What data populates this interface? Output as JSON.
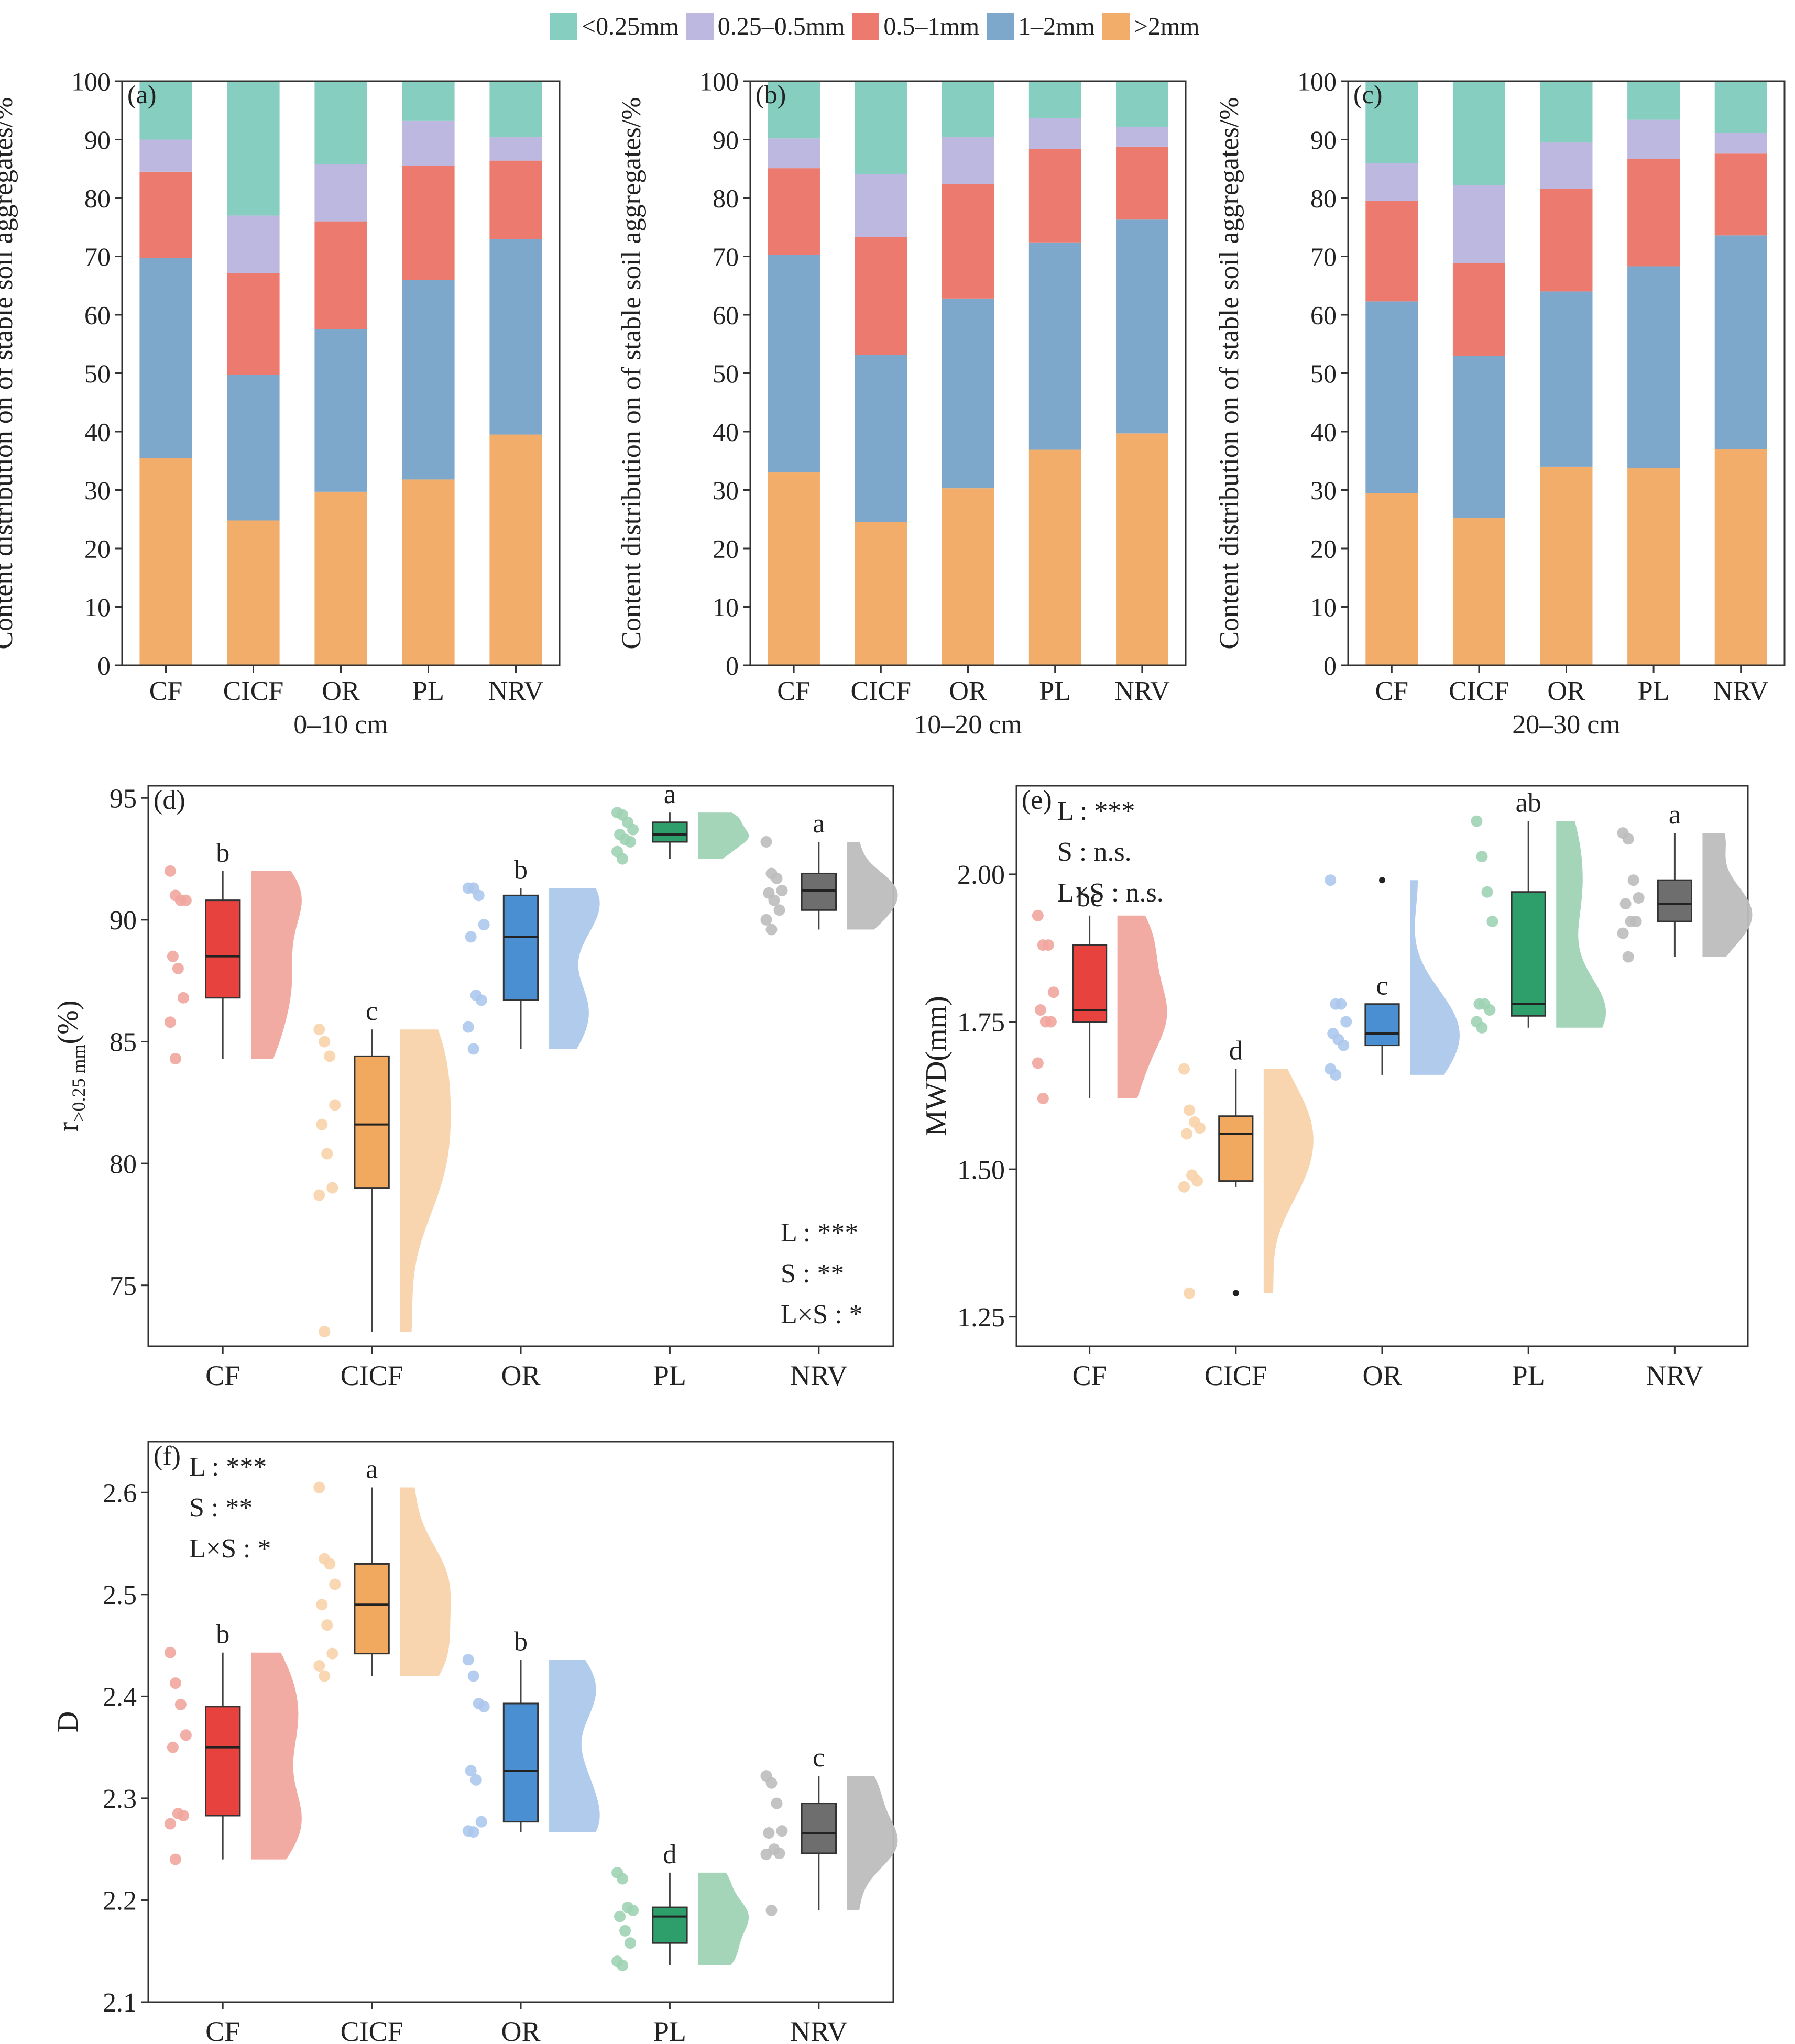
{
  "colors": {
    "lt025": "#86cfc0",
    "p025_05": "#bcb8df",
    "p05_1": "#ec7a6f",
    "p1_2": "#7ea8cb",
    "gt2": "#f3ad6a",
    "CF": "#e8423f",
    "CICF": "#f1a85f",
    "OR": "#4b8fd3",
    "PL": "#2e9e6b",
    "NRV": "#6e6e6e",
    "CF_light": "#f1a69e",
    "CICF_light": "#f8d3ab",
    "OR_light": "#adc8ec",
    "PL_light": "#9fd3b4",
    "NRV_light": "#bdbdbd"
  },
  "legend": [
    {
      "key": "lt025",
      "label": "<0.25mm",
      "icon": "legend-swatch"
    },
    {
      "key": "p025_05",
      "label": "0.25–0.5mm",
      "icon": "legend-swatch"
    },
    {
      "key": "p05_1",
      "label": "0.5–1mm",
      "icon": "legend-swatch"
    },
    {
      "key": "p1_2",
      "label": "1–2mm",
      "icon": "legend-swatch"
    },
    {
      "key": "gt2",
      "label": ">2mm",
      "icon": "legend-swatch"
    }
  ],
  "chart_data": [
    {
      "type": "bar",
      "stacked": true,
      "panel_label": "(a)",
      "xlabel": "0–10 cm",
      "ylabel": "Content distribution on of stable soil aggregates/%",
      "ylim": [
        0,
        100
      ],
      "yticks": [
        0,
        10,
        20,
        30,
        40,
        50,
        60,
        70,
        80,
        90,
        100
      ],
      "categories": [
        "CF",
        "CICF",
        "OR",
        "PL",
        "NRV"
      ],
      "series": [
        {
          "key": "gt2",
          "name": ">2mm",
          "values": [
            35.5,
            24.8,
            29.7,
            31.8,
            39.5
          ]
        },
        {
          "key": "p1_2",
          "name": "1–2mm",
          "values": [
            34.2,
            24.9,
            27.8,
            34.2,
            33.5
          ]
        },
        {
          "key": "p05_1",
          "name": "0.5–1mm",
          "values": [
            14.8,
            17.4,
            18.5,
            19.5,
            13.4
          ]
        },
        {
          "key": "p025_05",
          "name": "0.25–0.5mm",
          "values": [
            5.5,
            9.9,
            9.8,
            7.7,
            4.0
          ]
        },
        {
          "key": "lt025",
          "name": "<0.25mm",
          "values": [
            10.0,
            23.0,
            14.2,
            6.8,
            9.6
          ]
        }
      ]
    },
    {
      "type": "bar",
      "stacked": true,
      "panel_label": "(b)",
      "xlabel": "10–20 cm",
      "ylabel": "Content distribution on of stable soil aggregates/%",
      "ylim": [
        0,
        100
      ],
      "yticks": [
        0,
        10,
        20,
        30,
        40,
        50,
        60,
        70,
        80,
        90,
        100
      ],
      "categories": [
        "CF",
        "CICF",
        "OR",
        "PL",
        "NRV"
      ],
      "series": [
        {
          "key": "gt2",
          "name": ">2mm",
          "values": [
            33.0,
            24.5,
            30.3,
            36.9,
            39.7
          ]
        },
        {
          "key": "p1_2",
          "name": "1–2mm",
          "values": [
            37.3,
            28.6,
            32.5,
            35.5,
            36.6
          ]
        },
        {
          "key": "p05_1",
          "name": "0.5–1mm",
          "values": [
            14.8,
            20.2,
            19.6,
            16.0,
            12.5
          ]
        },
        {
          "key": "p025_05",
          "name": "0.25–0.5mm",
          "values": [
            5.1,
            10.8,
            8.0,
            5.3,
            3.4
          ]
        },
        {
          "key": "lt025",
          "name": "<0.25mm",
          "values": [
            9.8,
            15.9,
            9.6,
            6.3,
            7.8
          ]
        }
      ]
    },
    {
      "type": "bar",
      "stacked": true,
      "panel_label": "(c)",
      "xlabel": "20–30 cm",
      "ylabel": "Content distribution on of stable soil aggregates/%",
      "ylim": [
        0,
        100
      ],
      "yticks": [
        0,
        10,
        20,
        30,
        40,
        50,
        60,
        70,
        80,
        90,
        100
      ],
      "categories": [
        "CF",
        "CICF",
        "OR",
        "PL",
        "NRV"
      ],
      "series": [
        {
          "key": "gt2",
          "name": ">2mm",
          "values": [
            29.5,
            25.2,
            34.0,
            33.8,
            37.0
          ]
        },
        {
          "key": "p1_2",
          "name": "1–2mm",
          "values": [
            32.8,
            27.8,
            30.0,
            34.5,
            36.6
          ]
        },
        {
          "key": "p05_1",
          "name": "0.5–1mm",
          "values": [
            17.2,
            15.8,
            17.6,
            18.4,
            14.0
          ]
        },
        {
          "key": "p025_05",
          "name": "0.25–0.5mm",
          "values": [
            6.5,
            13.4,
            7.9,
            6.7,
            3.6
          ]
        },
        {
          "key": "lt025",
          "name": "<0.25mm",
          "values": [
            14.0,
            17.8,
            10.5,
            6.6,
            8.8
          ]
        }
      ]
    },
    {
      "type": "box",
      "panel_label": "(d)",
      "ylabel_main": "r",
      "ylabel_sub": ">0.25 mm",
      "ylabel_unit": "(%)",
      "ylim": [
        72.5,
        95.5
      ],
      "yticks": [
        75,
        80,
        85,
        90,
        95
      ],
      "categories": [
        "CF",
        "CICF",
        "OR",
        "PL",
        "NRV"
      ],
      "stats_position": "bottom-right",
      "stats": [
        "L : ***",
        "S : **",
        "L×S : *"
      ],
      "groups": [
        {
          "name": "CF",
          "q1": 86.8,
          "median": 88.5,
          "q3": 90.8,
          "whisker_low": 84.3,
          "whisker_high": 92.0,
          "letter": "b",
          "points": [
            92.0,
            91.0,
            90.8,
            90.8,
            88.5,
            88.0,
            86.8,
            85.8,
            84.3
          ],
          "outliers": []
        },
        {
          "name": "CICF",
          "q1": 79.0,
          "median": 81.6,
          "q3": 84.4,
          "whisker_low": 73.1,
          "whisker_high": 85.5,
          "letter": "c",
          "points": [
            85.5,
            85.0,
            84.4,
            82.4,
            81.6,
            80.4,
            79.0,
            78.7,
            73.1
          ],
          "outliers": []
        },
        {
          "name": "OR",
          "q1": 86.7,
          "median": 89.3,
          "q3": 91.0,
          "whisker_low": 84.7,
          "whisker_high": 91.3,
          "letter": "b",
          "points": [
            91.3,
            91.3,
            91.0,
            89.8,
            89.3,
            86.9,
            86.7,
            85.6,
            84.7
          ],
          "outliers": []
        },
        {
          "name": "PL",
          "q1": 93.2,
          "median": 93.5,
          "q3": 94.0,
          "whisker_low": 92.5,
          "whisker_high": 94.4,
          "letter": "a",
          "points": [
            94.4,
            94.3,
            94.0,
            93.7,
            93.5,
            93.3,
            93.2,
            92.8,
            92.5
          ],
          "outliers": []
        },
        {
          "name": "NRV",
          "q1": 90.4,
          "median": 91.2,
          "q3": 91.9,
          "whisker_low": 89.6,
          "whisker_high": 93.2,
          "letter": "a",
          "points": [
            93.2,
            91.9,
            91.7,
            91.2,
            91.1,
            90.8,
            90.4,
            90.0,
            89.6
          ],
          "outliers": []
        }
      ]
    },
    {
      "type": "box",
      "panel_label": "(e)",
      "ylabel": "MWD(mm)",
      "ylim": [
        1.2,
        2.15
      ],
      "yticks": [
        1.25,
        1.5,
        1.75,
        2.0
      ],
      "categories": [
        "CF",
        "CICF",
        "OR",
        "PL",
        "NRV"
      ],
      "stats_position": "top-left",
      "stats": [
        "L : ***",
        "S : n.s.",
        "L×S : n.s."
      ],
      "groups": [
        {
          "name": "CF",
          "q1": 1.75,
          "median": 1.77,
          "q3": 1.88,
          "whisker_low": 1.62,
          "whisker_high": 1.93,
          "letter": "bc",
          "points": [
            1.93,
            1.88,
            1.88,
            1.8,
            1.77,
            1.75,
            1.75,
            1.68,
            1.62
          ],
          "outliers": []
        },
        {
          "name": "CICF",
          "q1": 1.48,
          "median": 1.56,
          "q3": 1.59,
          "whisker_low": 1.47,
          "whisker_high": 1.67,
          "letter": "d",
          "points": [
            1.67,
            1.6,
            1.58,
            1.57,
            1.56,
            1.49,
            1.48,
            1.47,
            1.29
          ],
          "outliers": [
            1.29
          ]
        },
        {
          "name": "OR",
          "q1": 1.71,
          "median": 1.73,
          "q3": 1.78,
          "whisker_low": 1.66,
          "whisker_high": 1.78,
          "letter": "c",
          "points": [
            1.99,
            1.78,
            1.78,
            1.75,
            1.73,
            1.72,
            1.71,
            1.67,
            1.66
          ],
          "outliers": [
            1.99
          ]
        },
        {
          "name": "PL",
          "q1": 1.76,
          "median": 1.78,
          "q3": 1.97,
          "whisker_low": 1.74,
          "whisker_high": 2.09,
          "letter": "ab",
          "points": [
            2.09,
            2.03,
            1.97,
            1.92,
            1.78,
            1.78,
            1.77,
            1.75,
            1.74
          ],
          "outliers": []
        },
        {
          "name": "NRV",
          "q1": 1.92,
          "median": 1.95,
          "q3": 1.99,
          "whisker_low": 1.86,
          "whisker_high": 2.07,
          "letter": "a",
          "points": [
            2.07,
            2.06,
            1.99,
            1.96,
            1.95,
            1.92,
            1.92,
            1.9,
            1.86
          ],
          "outliers": []
        }
      ]
    },
    {
      "type": "box",
      "panel_label": "(f)",
      "ylabel": "D",
      "ylim": [
        2.1,
        2.65
      ],
      "yticks": [
        2.1,
        2.2,
        2.3,
        2.4,
        2.5,
        2.6
      ],
      "categories": [
        "CF",
        "CICF",
        "OR",
        "PL",
        "NRV"
      ],
      "stats_position": "top-left",
      "stats": [
        "L : ***",
        "S : **",
        "L×S : *"
      ],
      "groups": [
        {
          "name": "CF",
          "q1": 2.283,
          "median": 2.35,
          "q3": 2.39,
          "whisker_low": 2.24,
          "whisker_high": 2.443,
          "letter": "b",
          "points": [
            2.443,
            2.413,
            2.392,
            2.362,
            2.35,
            2.285,
            2.283,
            2.275,
            2.24
          ],
          "outliers": []
        },
        {
          "name": "CICF",
          "q1": 2.442,
          "median": 2.49,
          "q3": 2.53,
          "whisker_low": 2.42,
          "whisker_high": 2.605,
          "letter": "a",
          "points": [
            2.605,
            2.535,
            2.53,
            2.51,
            2.49,
            2.47,
            2.442,
            2.43,
            2.42
          ],
          "outliers": []
        },
        {
          "name": "OR",
          "q1": 2.277,
          "median": 2.327,
          "q3": 2.393,
          "whisker_low": 2.267,
          "whisker_high": 2.436,
          "letter": "b",
          "points": [
            2.436,
            2.42,
            2.393,
            2.39,
            2.327,
            2.318,
            2.277,
            2.268,
            2.267
          ],
          "outliers": []
        },
        {
          "name": "PL",
          "q1": 2.158,
          "median": 2.184,
          "q3": 2.193,
          "whisker_low": 2.136,
          "whisker_high": 2.227,
          "letter": "d",
          "points": [
            2.227,
            2.221,
            2.193,
            2.19,
            2.184,
            2.17,
            2.158,
            2.14,
            2.136
          ],
          "outliers": []
        },
        {
          "name": "NRV",
          "q1": 2.246,
          "median": 2.266,
          "q3": 2.295,
          "whisker_low": 2.19,
          "whisker_high": 2.322,
          "letter": "c",
          "points": [
            2.322,
            2.315,
            2.295,
            2.268,
            2.266,
            2.25,
            2.246,
            2.245,
            2.19
          ],
          "outliers": []
        }
      ]
    }
  ]
}
